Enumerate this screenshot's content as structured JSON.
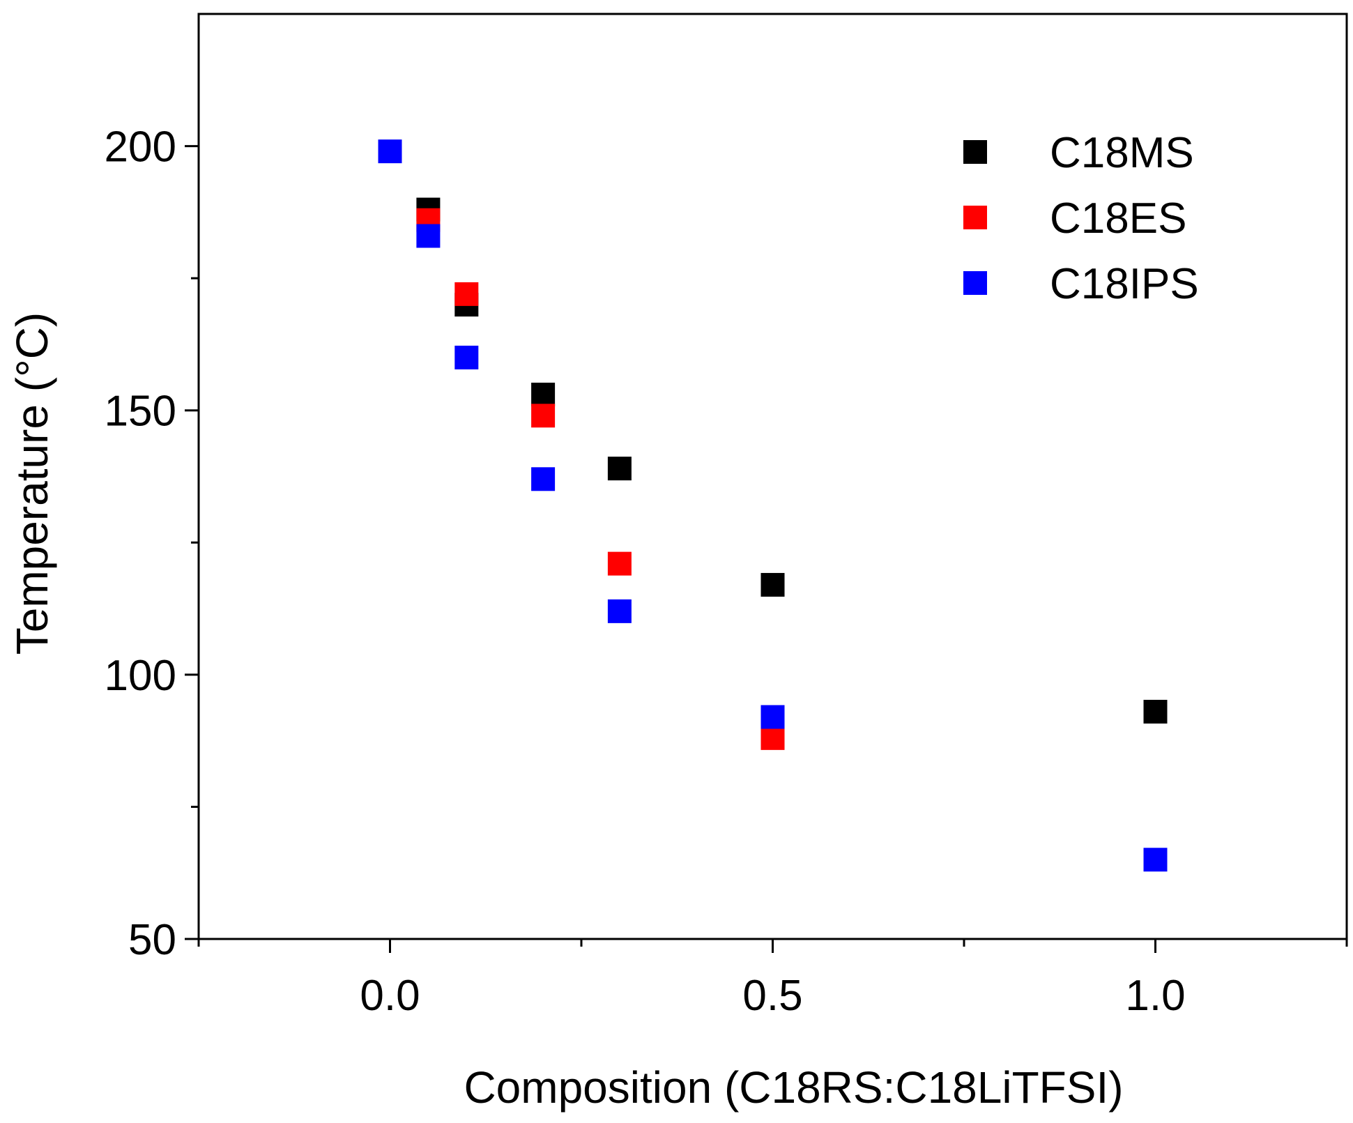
{
  "chart_data": {
    "type": "scatter",
    "title": "",
    "xlabel": "Composition (C18RS:C18LiTFSI)",
    "ylabel": "Temperature (°C)",
    "xlim": [
      -0.25,
      1.25
    ],
    "ylim": [
      50,
      225
    ],
    "x_major_ticks": [
      0.0,
      0.5,
      1.0
    ],
    "x_tick_labels": [
      "0.0",
      "0.5",
      "1.0"
    ],
    "x_minor_ticks": [
      -0.25,
      0.25,
      0.75,
      1.25
    ],
    "y_major_ticks": [
      50,
      100,
      150,
      200
    ],
    "y_tick_labels": [
      "50",
      "100",
      "150",
      "200"
    ],
    "y_minor_ticks": [
      75,
      125,
      175
    ],
    "grid": false,
    "legend_position": "top-right",
    "series": [
      {
        "name": "C18MS",
        "color": "#000000",
        "x": [
          0.05,
          0.1,
          0.2,
          0.3,
          0.5,
          1.0
        ],
        "y": [
          188,
          170,
          153,
          139,
          117,
          93
        ]
      },
      {
        "name": "C18ES",
        "color": "#ff0000",
        "x": [
          0.05,
          0.1,
          0.2,
          0.3,
          0.5
        ],
        "y": [
          186,
          172,
          149,
          121,
          88
        ]
      },
      {
        "name": "C18IPS",
        "color": "#0000ff",
        "x": [
          0.0,
          0.05,
          0.1,
          0.2,
          0.3,
          0.5,
          1.0
        ],
        "y": [
          199,
          183,
          160,
          137,
          112,
          92,
          65
        ]
      }
    ]
  }
}
